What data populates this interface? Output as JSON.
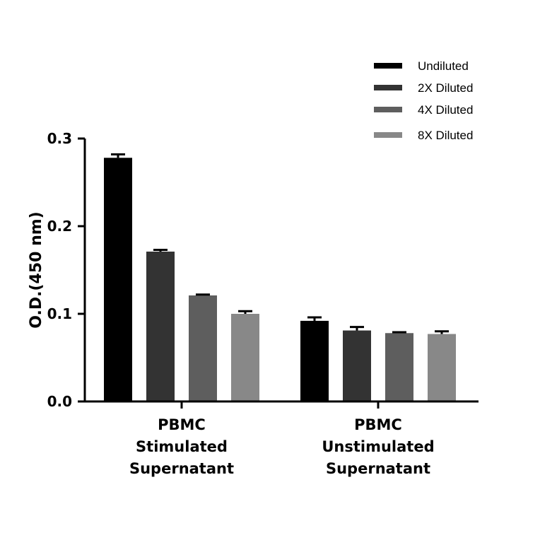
{
  "chart_data": {
    "type": "bar",
    "title": "",
    "xlabel": "",
    "ylabel": "O.D.(450 nm)",
    "ylim": [
      0,
      0.3
    ],
    "yticks": [
      "0.0",
      "0.1",
      "0.2",
      "0.3"
    ],
    "grid": false,
    "legend_position": "top-right",
    "categories": [
      [
        "PBMC",
        "Stimulated",
        "Supernatant"
      ],
      [
        "PBMC",
        "Unstimulated",
        "Supernatant"
      ]
    ],
    "series": [
      {
        "name": "Undiluted",
        "color": "#000000",
        "values": [
          0.278,
          0.092
        ],
        "errors": [
          0.004,
          0.004
        ]
      },
      {
        "name": "2X Diluted",
        "color": "#333333",
        "values": [
          0.171,
          0.081
        ],
        "errors": [
          0.002,
          0.004
        ]
      },
      {
        "name": "4X Diluted",
        "color": "#5e5e5e",
        "values": [
          0.121,
          0.078
        ],
        "errors": [
          0.001,
          0.001
        ]
      },
      {
        "name": "8X Diluted",
        "color": "#888888",
        "values": [
          0.1,
          0.077
        ],
        "errors": [
          0.003,
          0.003
        ]
      }
    ]
  }
}
